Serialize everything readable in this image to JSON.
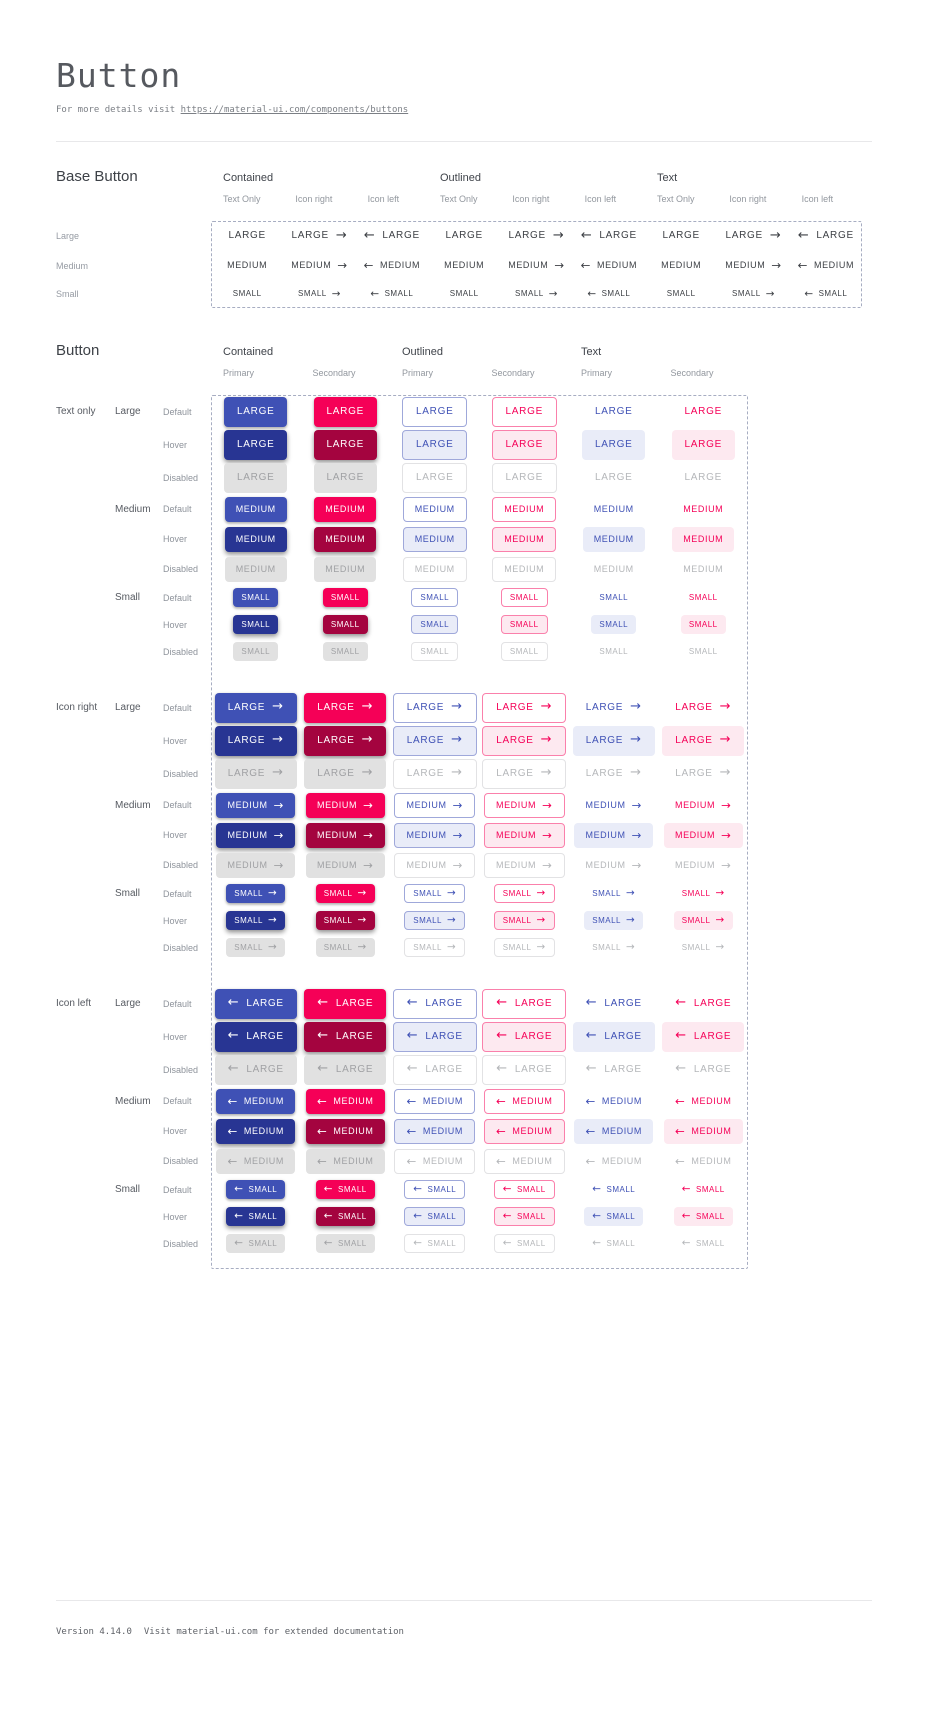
{
  "page": {
    "title": "Button",
    "subtitle_prefix": "For more details visit ",
    "subtitle_link": "https://material-ui.com/components/buttons"
  },
  "footer": {
    "version": "Version 4.14.0",
    "note": "Visit material-ui.com for extended documentation"
  },
  "colors": {
    "primary": "#3f51b5",
    "primary_hover": "#283593",
    "secondary": "#f50057",
    "secondary_hover": "#a4043f",
    "primary_tint": "#e9ecf8",
    "secondary_tint": "#fde9f0",
    "outlined_primary_border": "#9fa8da",
    "outlined_secondary_border": "#fa80ab",
    "disabled_bg": "#e1e1e1",
    "disabled_text": "#a0a1a4",
    "disabled_light_text": "#b5b7ba"
  },
  "base_section": {
    "heading": "Base Button",
    "groups": [
      {
        "label": "Contained",
        "variants": [
          "Text Only",
          "Icon right",
          "Icon left"
        ]
      },
      {
        "label": "Outlined",
        "variants": [
          "Text Only",
          "Icon right",
          "Icon left"
        ]
      },
      {
        "label": "Text",
        "variants": [
          "Text Only",
          "Icon right",
          "Icon left"
        ]
      }
    ],
    "rows": [
      {
        "label": "Large",
        "button_text": "LARGE"
      },
      {
        "label": "Medium",
        "button_text": "MEDIUM"
      },
      {
        "label": "Small",
        "button_text": "SMALL"
      }
    ]
  },
  "button_section": {
    "heading": "Button",
    "groups": [
      {
        "label": "Contained",
        "variants": [
          "Primary",
          "Secondary"
        ]
      },
      {
        "label": "Outlined",
        "variants": [
          "Primary",
          "Secondary"
        ]
      },
      {
        "label": "Text",
        "variants": [
          "Primary",
          "Secondary"
        ]
      }
    ],
    "icon_blocks": [
      {
        "label": "Text only",
        "icon": "none"
      },
      {
        "label": "Icon right",
        "icon": "right"
      },
      {
        "label": "Icon left",
        "icon": "left"
      }
    ],
    "sizes": [
      {
        "label": "Large",
        "button_text": "LARGE"
      },
      {
        "label": "Medium",
        "button_text": "MEDIUM"
      },
      {
        "label": "Small",
        "button_text": "SMALL"
      }
    ],
    "states": [
      "Default",
      "Hover",
      "Disabled"
    ],
    "icons": {
      "right": "→",
      "left": "←"
    }
  }
}
